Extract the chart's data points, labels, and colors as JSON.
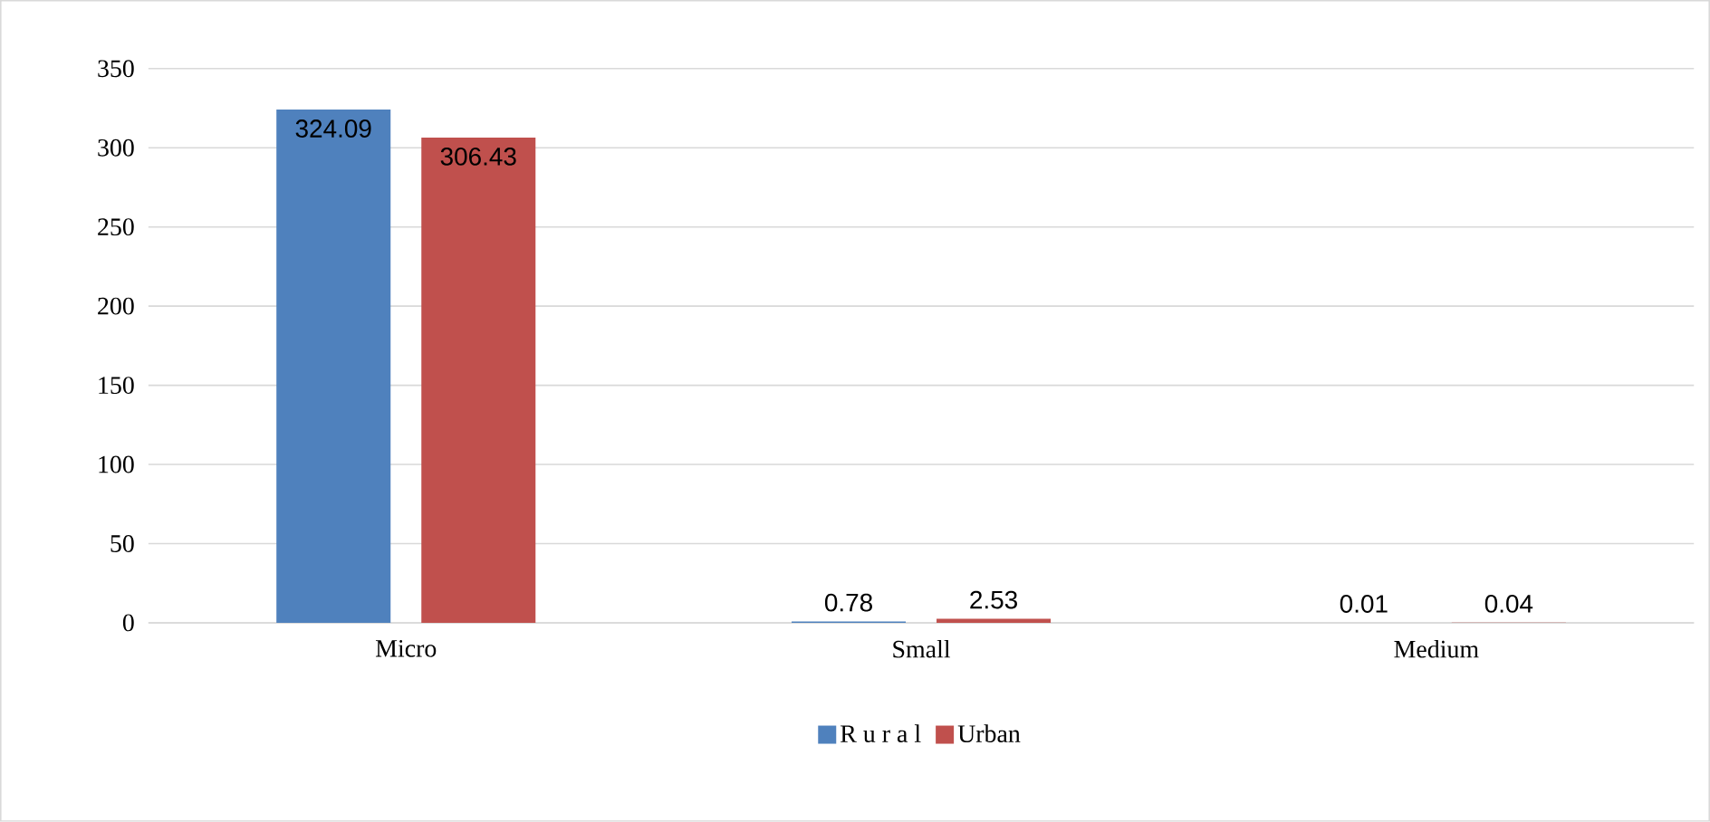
{
  "chart_data": {
    "type": "bar",
    "categories": [
      "Micro",
      "Small",
      "Medium"
    ],
    "series": [
      {
        "name": "R u r a l",
        "color": "#4f81bd",
        "values": [
          324.09,
          0.78,
          0.01
        ]
      },
      {
        "name": "Urban",
        "color": "#c0504d",
        "values": [
          306.43,
          2.53,
          0.04
        ]
      }
    ],
    "ylim": [
      0,
      350
    ],
    "yticks": [
      0,
      50,
      100,
      150,
      200,
      250,
      300,
      350
    ],
    "grid": "y",
    "legend": "bottom",
    "data_labels": true
  }
}
